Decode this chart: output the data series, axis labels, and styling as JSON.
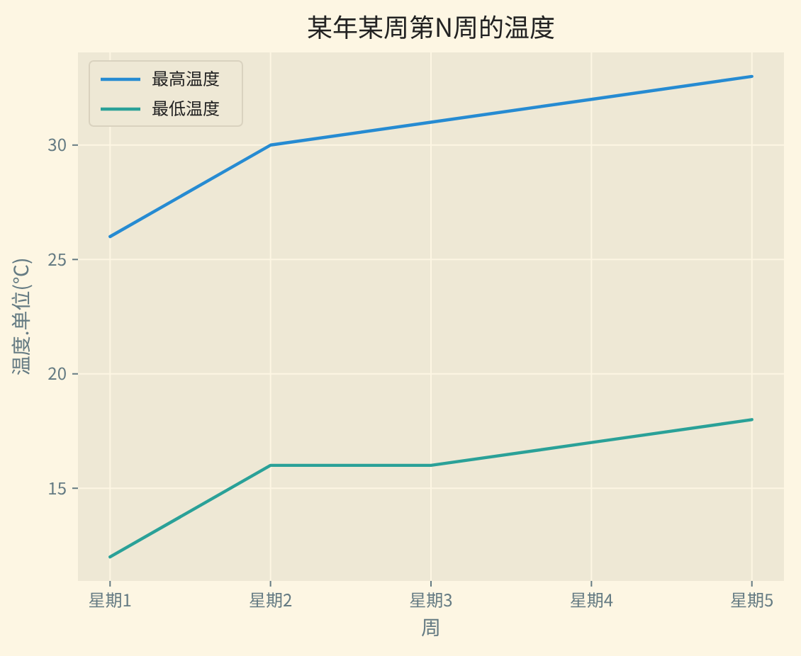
{
  "chart_data": {
    "type": "line",
    "title": "某年某周第N周的温度",
    "xlabel": "周",
    "ylabel": "温度.单位(℃)",
    "categories": [
      "星期1",
      "星期2",
      "星期3",
      "星期4",
      "星期5"
    ],
    "series": [
      {
        "name": "最高温度",
        "color": "#268bd2",
        "values": [
          26,
          30,
          31,
          32,
          33
        ]
      },
      {
        "name": "最低温度",
        "color": "#2aa198",
        "values": [
          12,
          16,
          16,
          17,
          18
        ]
      }
    ],
    "ylim": [
      10.95,
      34.05
    ],
    "yticks": [
      15,
      20,
      25,
      30
    ],
    "grid": true,
    "legend": "top left",
    "marker": "none",
    "line_style": "solid"
  }
}
